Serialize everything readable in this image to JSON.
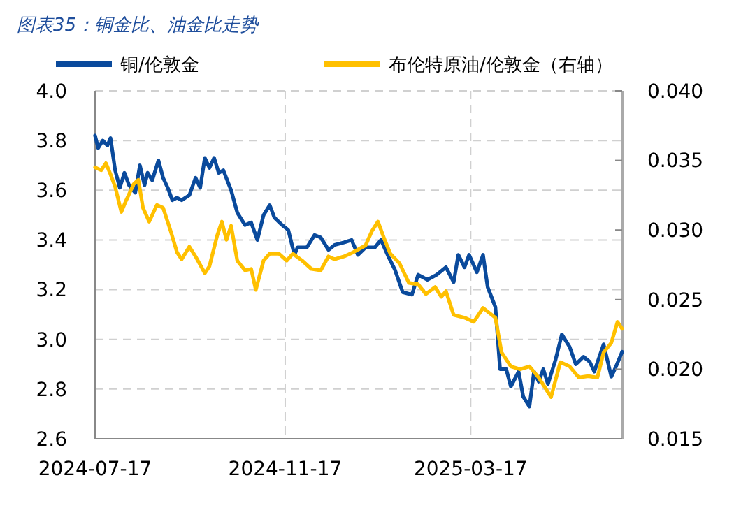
{
  "chart_data": {
    "type": "line",
    "title": "图表35：铜金比、油金比走势",
    "x": [
      "2024-07-17",
      "2024-07-19",
      "2024-07-22",
      "2024-07-25",
      "2024-07-27",
      "2024-07-30",
      "2024-08-02",
      "2024-08-05",
      "2024-08-08",
      "2024-08-12",
      "2024-08-15",
      "2024-08-18",
      "2024-08-20",
      "2024-08-23",
      "2024-08-27",
      "2024-08-30",
      "2024-09-02",
      "2024-09-05",
      "2024-09-08",
      "2024-09-11",
      "2024-09-16",
      "2024-09-20",
      "2024-09-23",
      "2024-09-26",
      "2024-09-29",
      "2024-10-02",
      "2024-10-05",
      "2024-10-08",
      "2024-10-13",
      "2024-10-17",
      "2024-10-22",
      "2024-10-26",
      "2024-10-30",
      "2024-11-03",
      "2024-11-07",
      "2024-11-10",
      "2024-11-15",
      "2024-11-19",
      "2024-11-23",
      "2024-11-25",
      "2024-12-01",
      "2024-12-06",
      "2024-12-10",
      "2024-12-15",
      "2024-12-19",
      "2024-12-25",
      "2024-12-30",
      "2025-01-03",
      "2025-01-08",
      "2025-01-14",
      "2025-01-18",
      "2025-01-23",
      "2025-01-27",
      "2025-02-01",
      "2025-02-07",
      "2025-02-11",
      "2025-02-17",
      "2025-02-23",
      "2025-03-01",
      "2025-03-06",
      "2025-03-09",
      "2025-03-13",
      "2025-03-16",
      "2025-03-21",
      "2025-03-25",
      "2025-03-28",
      "2025-04-02",
      "2025-04-05",
      "2025-04-09",
      "2025-04-12",
      "2025-04-17",
      "2025-04-20",
      "2025-04-24",
      "2025-04-27",
      "2025-04-30",
      "2025-05-03",
      "2025-05-06",
      "2025-05-11",
      "2025-05-15",
      "2025-05-20",
      "2025-05-24",
      "2025-05-29",
      "2025-06-02",
      "2025-06-05",
      "2025-06-11",
      "2025-06-16",
      "2025-06-19",
      "2025-06-23"
    ],
    "series": [
      {
        "name": "铜/伦敦金",
        "color": "#0a4a9c",
        "values": [
          3.82,
          3.77,
          3.8,
          3.78,
          3.81,
          3.68,
          3.61,
          3.67,
          3.62,
          3.59,
          3.7,
          3.62,
          3.67,
          3.64,
          3.72,
          3.65,
          3.61,
          3.56,
          3.57,
          3.56,
          3.58,
          3.65,
          3.61,
          3.73,
          3.69,
          3.73,
          3.67,
          3.68,
          3.6,
          3.51,
          3.46,
          3.47,
          3.4,
          3.5,
          3.54,
          3.49,
          3.46,
          3.44,
          3.34,
          3.37,
          3.37,
          3.42,
          3.41,
          3.36,
          3.38,
          3.39,
          3.4,
          3.34,
          3.37,
          3.37,
          3.4,
          3.33,
          3.28,
          3.19,
          3.18,
          3.26,
          3.24,
          3.26,
          3.29,
          3.23,
          3.34,
          3.29,
          3.34,
          3.27,
          3.34,
          3.21,
          3.13,
          2.88,
          2.88,
          2.81,
          2.87,
          2.77,
          2.73,
          2.87,
          2.83,
          2.88,
          2.82,
          2.92,
          3.02,
          2.97,
          2.9,
          2.93,
          2.91,
          2.87,
          2.98,
          2.85,
          2.89,
          2.95
        ]
      },
      {
        "name": "布伦特原油/伦敦金（右轴）",
        "color": "#ffc000",
        "axis": "y2",
        "x": [
          "2024-07-17",
          "2024-07-21",
          "2024-07-24",
          "2024-07-27",
          "2024-07-30",
          "2024-08-03",
          "2024-08-06",
          "2024-08-11",
          "2024-08-14",
          "2024-08-17",
          "2024-08-21",
          "2024-08-26",
          "2024-08-30",
          "2024-09-04",
          "2024-09-08",
          "2024-09-11",
          "2024-09-16",
          "2024-09-20",
          "2024-09-26",
          "2024-09-29",
          "2024-10-04",
          "2024-10-07",
          "2024-10-10",
          "2024-10-13",
          "2024-10-17",
          "2024-10-22",
          "2024-10-26",
          "2024-10-29",
          "2024-11-03",
          "2024-11-07",
          "2024-11-13",
          "2024-11-18",
          "2024-11-22",
          "2024-11-28",
          "2024-12-04",
          "2024-12-10",
          "2024-12-15",
          "2024-12-19",
          "2024-12-25",
          "2024-12-31",
          "2025-01-08",
          "2025-01-12",
          "2025-01-16",
          "2025-01-20",
          "2025-01-24",
          "2025-01-30",
          "2025-02-05",
          "2025-02-11",
          "2025-02-16",
          "2025-02-22",
          "2025-02-26",
          "2025-03-01",
          "2025-03-06",
          "2025-03-13",
          "2025-03-19",
          "2025-03-25",
          "2025-04-02",
          "2025-04-06",
          "2025-04-12",
          "2025-04-18",
          "2025-04-24",
          "2025-04-30",
          "2025-05-08",
          "2025-05-14",
          "2025-05-20",
          "2025-05-26",
          "2025-06-01",
          "2025-06-07",
          "2025-06-11",
          "2025-06-16",
          "2025-06-20",
          "2025-06-23"
        ],
        "values": [
          0.0345,
          0.0343,
          0.0348,
          0.034,
          0.0331,
          0.0313,
          0.0321,
          0.0333,
          0.0336,
          0.0316,
          0.0306,
          0.0318,
          0.0316,
          0.0299,
          0.0284,
          0.0279,
          0.0288,
          0.0281,
          0.0269,
          0.0274,
          0.0296,
          0.0306,
          0.0293,
          0.0303,
          0.0278,
          0.0271,
          0.0272,
          0.0257,
          0.0278,
          0.0283,
          0.0283,
          0.0278,
          0.0283,
          0.0278,
          0.0272,
          0.0271,
          0.0281,
          0.0279,
          0.0281,
          0.0284,
          0.0289,
          0.0299,
          0.0306,
          0.0294,
          0.0283,
          0.0276,
          0.0262,
          0.0261,
          0.0254,
          0.0259,
          0.0252,
          0.0256,
          0.0239,
          0.0237,
          0.0234,
          0.0244,
          0.0237,
          0.0212,
          0.0202,
          0.02,
          0.0202,
          0.0194,
          0.018,
          0.0205,
          0.0202,
          0.0194,
          0.0195,
          0.0194,
          0.0212,
          0.0219,
          0.0234,
          0.0229
        ]
      }
    ],
    "xlim": [
      "2024-07-17",
      "2025-06-23"
    ],
    "xticks": [
      "2024-07-17",
      "2024-11-17",
      "2025-03-17"
    ],
    "ylim": [
      2.6,
      4.0
    ],
    "yticks": [
      {
        "value": 2.6,
        "label": "2.6"
      },
      {
        "value": 2.8,
        "label": "2.8"
      },
      {
        "value": 3.0,
        "label": "3.0"
      },
      {
        "value": 3.2,
        "label": "3.2"
      },
      {
        "value": 3.4,
        "label": "3.4"
      },
      {
        "value": 3.6,
        "label": "3.6"
      },
      {
        "value": 3.8,
        "label": "3.8"
      },
      {
        "value": 4.0,
        "label": "4.0"
      }
    ],
    "y2lim": [
      0.015,
      0.04
    ],
    "y2ticks": [
      0.015,
      {
        "value": 0.02,
        "label": "0.020"
      },
      0.025,
      {
        "value": 0.03,
        "label": "0.030"
      },
      0.035,
      {
        "value": 0.04,
        "label": "0.040"
      }
    ],
    "grid": true,
    "legend": "top",
    "marker": "none",
    "line_style": "solid"
  }
}
